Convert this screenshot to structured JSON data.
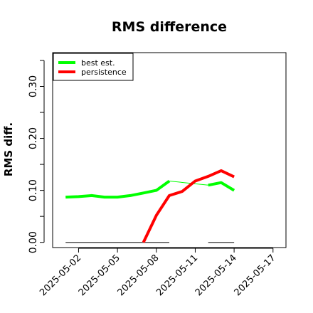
{
  "chart_data": {
    "type": "line",
    "title": "RMS difference",
    "xlabel": "",
    "ylabel": "RMS diff.",
    "x_ticks": [
      "2025-05-02",
      "2025-05-05",
      "2025-05-08",
      "2025-05-11",
      "2025-05-14",
      "2025-05-17"
    ],
    "xlim": [
      "2025-04-30",
      "2025-05-18"
    ],
    "y_ticks": [
      "0.00",
      "0.10",
      "0.20",
      "0.30"
    ],
    "ylim": [
      -0.01,
      0.365
    ],
    "legend": "top-left",
    "grid": false,
    "series": [
      {
        "name": "best est.",
        "color": "#00ff00",
        "segments": [
          {
            "x": [
              "2025-05-01",
              "2025-05-02",
              "2025-05-03",
              "2025-05-04",
              "2025-05-05",
              "2025-05-06",
              "2025-05-07",
              "2025-05-08",
              "2025-05-09"
            ],
            "y": [
              0.087,
              0.088,
              0.09,
              0.087,
              0.087,
              0.09,
              0.095,
              0.1,
              0.118
            ]
          },
          {
            "x": [
              "2025-05-09",
              "2025-05-12"
            ],
            "y": [
              0.118,
              0.11
            ],
            "thin": true
          },
          {
            "x": [
              "2025-05-12",
              "2025-05-13",
              "2025-05-14"
            ],
            "y": [
              0.11,
              0.115,
              0.1
            ]
          }
        ]
      },
      {
        "name": "persistence",
        "color": "#ff0000",
        "segments": [
          {
            "x": [
              "2025-05-07",
              "2025-05-08",
              "2025-05-09",
              "2025-05-10",
              "2025-05-11",
              "2025-05-12",
              "2025-05-13",
              "2025-05-14"
            ],
            "y": [
              0.0,
              0.052,
              0.09,
              0.098,
              0.118,
              0.127,
              0.138,
              0.126
            ]
          }
        ]
      }
    ],
    "availability": [
      {
        "from": "2025-05-01",
        "to": "2025-05-09"
      },
      {
        "from": "2025-05-12",
        "to": "2025-05-14"
      }
    ]
  }
}
